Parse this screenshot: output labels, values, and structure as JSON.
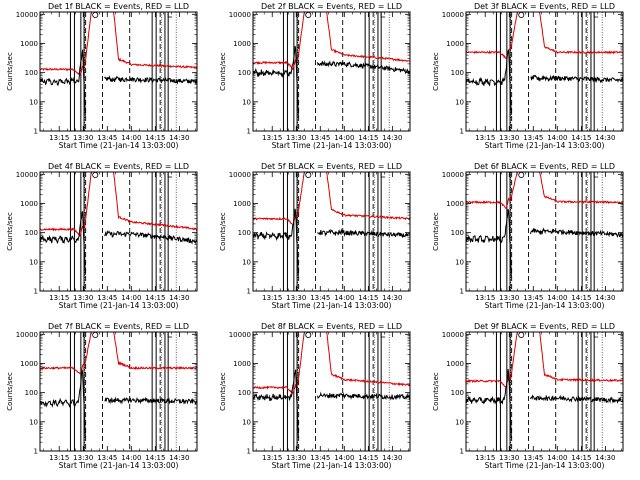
{
  "chart_data": {
    "type": "line",
    "figure_grid": {
      "rows": 3,
      "cols": 3
    },
    "shared": {
      "x_tick_labels": [
        "13:15",
        "13:30",
        "13:45",
        "14:00",
        "14:15",
        "14:30"
      ],
      "x_tick_minutes": [
        15,
        30,
        45,
        60,
        75,
        90
      ],
      "x_range_minutes_after_1300": [
        3,
        101
      ],
      "y_scale": "log",
      "y_range": [
        1,
        12000
      ],
      "y_tick_labels": [
        "1",
        "10",
        "100",
        "1000",
        "10000"
      ],
      "y_tick_values": [
        1,
        10,
        100,
        1000,
        10000
      ],
      "ylabel": "Counts/sec",
      "xlabel": "Start Time (21-Jan-14 13:03:00)",
      "series_names": [
        "Events",
        "LLD"
      ],
      "series_colors": {
        "Events": "#000000",
        "LLD": "#dd0000"
      },
      "dashed_vertical_lines_minutes": [
        31.5,
        42,
        59,
        78
      ],
      "solid_vertical_lines_minutes": [
        [
          22,
          24.5
        ],
        [
          28.5,
          30.5
        ],
        [
          73,
          75.5
        ],
        [
          81,
          83
        ]
      ],
      "dotted_vertical_lines_minutes": [
        22,
        31,
        79,
        88
      ],
      "saa_marker_minutes": 37.5,
      "gap_marker_minutes": 83
    },
    "panels": [
      {
        "title": "Det 1f BLACK = Events, RED = LLD",
        "events_base": 50,
        "events_peak": 700,
        "events_after": 60,
        "events_end": 50,
        "lld_base": 130,
        "lld_peak": 12000,
        "lld_after": 190,
        "lld_end": 150
      },
      {
        "title": "Det 2f BLACK = Events, RED = LLD",
        "events_base": 100,
        "events_peak": 900,
        "events_after": 200,
        "events_end": 110,
        "lld_base": 220,
        "lld_peak": 12000,
        "lld_after": 400,
        "lld_end": 250
      },
      {
        "title": "Det 3f BLACK = Events, RED = LLD",
        "events_base": 50,
        "events_peak": 700,
        "events_after": 65,
        "events_end": 55,
        "lld_base": 500,
        "lld_peak": 12000,
        "lld_after": 500,
        "lld_end": 500
      },
      {
        "title": "Det 4f BLACK = Events, RED = LLD",
        "events_base": 60,
        "events_peak": 700,
        "events_after": 90,
        "events_end": 50,
        "lld_base": 130,
        "lld_peak": 12000,
        "lld_after": 230,
        "lld_end": 130
      },
      {
        "title": "Det 5f BLACK = Events, RED = LLD",
        "events_base": 80,
        "events_peak": 700,
        "events_after": 100,
        "events_end": 80,
        "lld_base": 300,
        "lld_peak": 12000,
        "lld_after": 400,
        "lld_end": 300
      },
      {
        "title": "Det 6f BLACK = Events, RED = LLD",
        "events_base": 60,
        "events_peak": 700,
        "events_after": 110,
        "events_end": 85,
        "lld_base": 1100,
        "lld_peak": 12000,
        "lld_after": 1150,
        "lld_end": 1100
      },
      {
        "title": "Det 7f BLACK = Events, RED = LLD",
        "events_base": 45,
        "events_peak": 700,
        "events_after": 55,
        "events_end": 50,
        "lld_base": 700,
        "lld_peak": 12000,
        "lld_after": 700,
        "lld_end": 700
      },
      {
        "title": "Det 8f BLACK = Events, RED = LLD",
        "events_base": 70,
        "events_peak": 700,
        "events_after": 80,
        "events_end": 70,
        "lld_base": 150,
        "lld_peak": 12000,
        "lld_after": 280,
        "lld_end": 180
      },
      {
        "title": "Det 9f BLACK = Events, RED = LLD",
        "events_base": 55,
        "events_peak": 700,
        "events_after": 65,
        "events_end": 55,
        "lld_base": 250,
        "lld_peak": 12000,
        "lld_after": 280,
        "lld_end": 260
      }
    ]
  }
}
